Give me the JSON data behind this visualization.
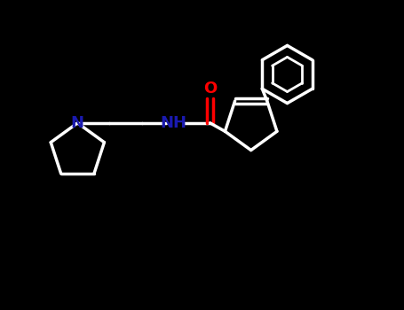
{
  "background_color": "#000000",
  "line_color": "#ffffff",
  "N_color": "#1a1ab0",
  "O_color": "#ff0000",
  "line_width": 2.5,
  "inner_ring_lw": 2.0,
  "font_size": 13,
  "fig_width": 4.55,
  "fig_height": 3.5,
  "dpi": 100,
  "xlim": [
    0,
    10
  ],
  "ylim": [
    1.5,
    8.5
  ]
}
